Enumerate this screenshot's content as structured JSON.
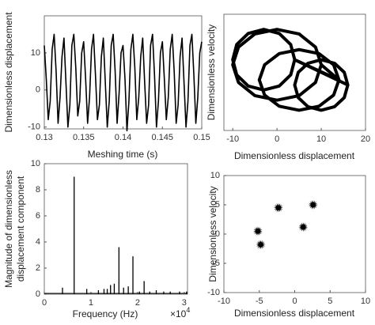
{
  "chart_data": [
    {
      "type": "line",
      "xlabel": "Meshing time (s)",
      "ylabel": "Dimensionless displacement",
      "xlim": [
        0.13,
        0.15
      ],
      "xticks": [
        0.13,
        0.135,
        0.14,
        0.145,
        0.15
      ],
      "ylim": [
        -10.5,
        20
      ],
      "yticks": [
        -10,
        0,
        10
      ],
      "color": "#000000",
      "x": [
        0.13,
        0.13025,
        0.1305,
        0.13075,
        0.131,
        0.13125,
        0.1315,
        0.13175,
        0.132,
        0.13225,
        0.1325,
        0.13275,
        0.133,
        0.13325,
        0.1335,
        0.13375,
        0.134,
        0.13425,
        0.1345,
        0.13475,
        0.135,
        0.13525,
        0.1355,
        0.13575,
        0.136,
        0.13625,
        0.1365,
        0.13675,
        0.137,
        0.13725,
        0.1375,
        0.13775,
        0.138,
        0.13825,
        0.1385,
        0.13875,
        0.139,
        0.13925,
        0.1395,
        0.13975,
        0.14,
        0.14025,
        0.1405,
        0.14075,
        0.141,
        0.14125,
        0.1415,
        0.14175,
        0.142,
        0.14225,
        0.1425,
        0.14275,
        0.143,
        0.14325,
        0.1435,
        0.14375,
        0.144,
        0.14425,
        0.1445,
        0.14475,
        0.145,
        0.14525,
        0.1455,
        0.14575,
        0.146,
        0.14625,
        0.1465,
        0.14675,
        0.147,
        0.14725,
        0.1475,
        0.14775,
        0.148,
        0.14825,
        0.1485,
        0.14875,
        0.149,
        0.14925,
        0.1495,
        0.14975,
        0.15
      ],
      "values": [
        12,
        3,
        -8,
        -3,
        11,
        15,
        5,
        -9,
        -2,
        9,
        14,
        2,
        -10,
        -4,
        12,
        15,
        6,
        -7,
        -3,
        10,
        13,
        3,
        -9,
        -2,
        11,
        15,
        4,
        -8,
        -4,
        9,
        14,
        2,
        -10,
        -3,
        12,
        15,
        5,
        -9,
        -1,
        10,
        12,
        3,
        -11,
        -3,
        11,
        15,
        6,
        -8,
        -2,
        9,
        14,
        2,
        -9,
        -4,
        12,
        15,
        4,
        -10,
        -3,
        10,
        13,
        3,
        -8,
        -2,
        11,
        15,
        5,
        -9,
        -4,
        9,
        14,
        2,
        -10,
        -3,
        12,
        15,
        4,
        -9,
        -2,
        10,
        13
      ]
    },
    {
      "type": "line",
      "xlabel": "Dimensionless displacement",
      "ylabel": "Dimensionless velocity",
      "xlim": [
        -12,
        20
      ],
      "xticks": [
        -10,
        0,
        10,
        20
      ],
      "ylim": [
        -11,
        12
      ],
      "color": "#000000",
      "x": [
        10,
        8.7,
        5,
        0,
        -5,
        -8.7,
        -10,
        -8.7,
        -5,
        0,
        5,
        8.7,
        10,
        14,
        12.8,
        9.5,
        5,
        0.5,
        -2.8,
        -4,
        -2.8,
        0.5,
        5,
        9.5,
        12.8,
        14,
        4,
        3.1,
        0.5,
        -3,
        -6.5,
        -9.1,
        -10,
        -9.1,
        -6.5,
        -3,
        0.5,
        3.1,
        4,
        16,
        15.2,
        13,
        10,
        7,
        4.8,
        4,
        4.8,
        7,
        10,
        13,
        15.2,
        16
      ],
      "values": [
        2,
        5.5,
        8.1,
        9,
        8.1,
        5.5,
        2,
        -1.5,
        -4.1,
        -5,
        -4.1,
        -1.5,
        2,
        -1,
        2,
        4.2,
        5,
        4.2,
        2,
        -1,
        -4,
        -6.2,
        -7,
        -6.2,
        -4,
        -1,
        3,
        6,
        8.2,
        9,
        8.2,
        6,
        3,
        0,
        -2.2,
        -3,
        -2.2,
        0,
        3,
        -2,
        0.5,
        2.3,
        3,
        2.3,
        0.5,
        -2,
        -4.5,
        -6.3,
        -7,
        -6.3,
        -4.5,
        -2
      ]
    },
    {
      "type": "stem",
      "xlabel": "Frequency (Hz)",
      "x_multiplier": {
        "base": "×10",
        "exponent": "4"
      },
      "ylabel": [
        "Magnitude of dimensionless",
        "displacement component"
      ],
      "xlim": [
        0,
        3.07
      ],
      "xticks": [
        0,
        1,
        2,
        3
      ],
      "ylim": [
        0,
        10
      ],
      "yticks": [
        0,
        2,
        4,
        6,
        8,
        10
      ],
      "color": "#000000",
      "x": [
        0.39,
        0.64,
        0.91,
        1.16,
        1.28,
        1.35,
        1.42,
        1.5,
        1.6,
        1.7,
        1.8,
        1.9,
        2.04,
        2.14,
        2.26,
        2.4,
        2.56,
        2.7,
        2.9,
        3.05
      ],
      "values": [
        0.5,
        9,
        0.4,
        0.3,
        0.4,
        0.4,
        0.7,
        0.8,
        3.6,
        0.5,
        0.6,
        2.9,
        0.2,
        1.0,
        0.2,
        0.3,
        0.2,
        0.2,
        0.2,
        0.2
      ]
    },
    {
      "type": "scatter",
      "xlabel": "Dimensionless displacement",
      "ylabel": "Dimensionless velocity",
      "xlim": [
        -10,
        10
      ],
      "xticks": [
        -10,
        -5,
        0,
        5,
        10
      ],
      "ylim": [
        -10,
        10
      ],
      "yticks": [
        -10,
        -5,
        0,
        5,
        10
      ],
      "color": "#000000",
      "x": [
        -5.2,
        -4.8,
        -2.3,
        1.2,
        2.6
      ],
      "values": [
        0.5,
        -1.8,
        4.5,
        1.2,
        5.0
      ]
    }
  ]
}
